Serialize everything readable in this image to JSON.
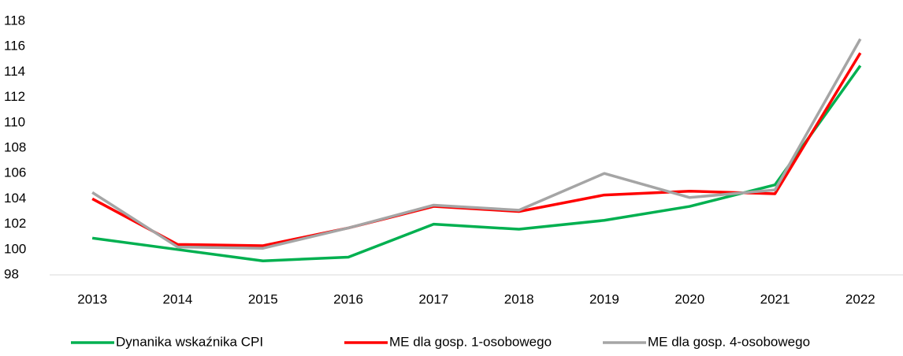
{
  "chart_data": {
    "type": "line",
    "categories": [
      "2013",
      "2014",
      "2015",
      "2016",
      "2017",
      "2018",
      "2019",
      "2020",
      "2021",
      "2022"
    ],
    "series": [
      {
        "name": "Dynanika wskaźnika CPI",
        "color": "#00b050",
        "values": [
          100.9,
          100.0,
          99.1,
          99.4,
          102.0,
          101.6,
          102.3,
          103.4,
          105.1,
          114.5
        ]
      },
      {
        "name": "ME dla gosp.  1-osobowego",
        "color": "#ff0000",
        "values": [
          104.0,
          100.4,
          100.3,
          101.7,
          103.4,
          103.0,
          104.3,
          104.6,
          104.4,
          115.5
        ]
      },
      {
        "name": "ME dla gosp. 4-osobowego",
        "color": "#a5a5a5",
        "values": [
          104.5,
          100.2,
          100.1,
          101.7,
          103.5,
          103.1,
          106.0,
          104.1,
          104.7,
          116.6
        ]
      }
    ],
    "ylim": [
      98,
      118
    ],
    "yticks": [
      98,
      100,
      102,
      104,
      106,
      108,
      110,
      112,
      114,
      116,
      118
    ],
    "grid": false,
    "legend": "bottom"
  }
}
